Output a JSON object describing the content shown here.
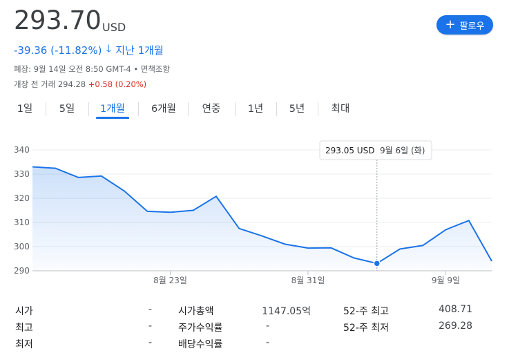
{
  "header": {
    "price": "293.70",
    "currency": "USD",
    "change": "-39.36 (-11.82%)",
    "change_period": "지난 1개월",
    "close_info": "폐장: 9월 14일 오전 8:50 GMT-4 • 면책조항",
    "premarket_label": "개장 전 거래 294.28",
    "premarket_change": "+0.58 (0.20%)",
    "follow_label": "팔로우",
    "down_color": "#1a73e8",
    "up_color": "#d93025"
  },
  "tabs": [
    "1일",
    "5일",
    "1개월",
    "6개월",
    "연중",
    "1년",
    "5년",
    "최대"
  ],
  "active_tab": "1개월",
  "tooltip": {
    "price": "293.05 USD",
    "date": "9월 6일 (화)"
  },
  "chart_data": {
    "type": "area",
    "x": [
      "8월 15일",
      "8월 16일",
      "8월 17일",
      "8월 18일",
      "8월 19일",
      "8월 22일",
      "8월 23일",
      "8월 24일",
      "8월 25일",
      "8월 26일",
      "8월 29일",
      "8월 30일",
      "8월 31일",
      "9월 1일",
      "9월 2일",
      "9월 6일",
      "9월 7일",
      "9월 8일",
      "9월 9일",
      "9월 12일",
      "9월 13일"
    ],
    "values": [
      333.0,
      332.4,
      328.6,
      329.2,
      323.0,
      314.6,
      314.2,
      315.0,
      320.8,
      307.5,
      304.4,
      301.0,
      299.4,
      299.5,
      295.3,
      293.05,
      299.0,
      300.5,
      307.0,
      310.8,
      294.0
    ],
    "x_ticks": [
      "8월 23일",
      "8월 31일",
      "9월 9일"
    ],
    "x_tick_indices": [
      6,
      12,
      18
    ],
    "y_ticks": [
      290,
      300,
      310,
      320,
      330,
      340
    ],
    "ylim": [
      290,
      340
    ],
    "highlight_index": 15,
    "line_color": "#1a73e8",
    "grid": true
  },
  "stats": {
    "col1": [
      {
        "label": "시가",
        "value": "-"
      },
      {
        "label": "최고",
        "value": "-"
      },
      {
        "label": "최저",
        "value": "-"
      }
    ],
    "col2": [
      {
        "label": "시가총액",
        "value": "1147.05억"
      },
      {
        "label": "주가수익률",
        "value": "-"
      },
      {
        "label": "배당수익률",
        "value": "-"
      }
    ],
    "col3": [
      {
        "label": "52-주 최고",
        "value": "408.71"
      },
      {
        "label": "52-주 최저",
        "value": "269.28"
      }
    ]
  }
}
